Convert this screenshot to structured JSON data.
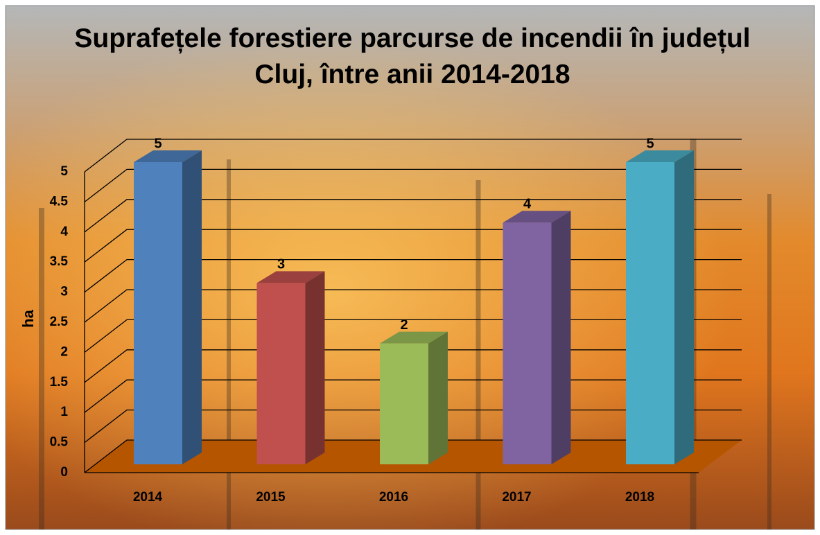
{
  "chart_data": {
    "type": "bar3d",
    "title": "Suprafețele forestiere parcurse de incendii în județul Cluj, între anii 2014-2018",
    "y_label": "ha",
    "categories": [
      "2014",
      "2015",
      "2016",
      "2017",
      "2018"
    ],
    "values": [
      5,
      3,
      2,
      4,
      5
    ],
    "colors": [
      "#4f81bd",
      "#c0504d",
      "#9bbb59",
      "#8064a2",
      "#4bacc6"
    ],
    "floor_color": "#b65500",
    "ylim": [
      0,
      5
    ],
    "yticks": [
      0,
      0.5,
      1,
      1.5,
      2,
      2.5,
      3,
      3.5,
      4,
      4.5,
      5
    ],
    "grid": true
  }
}
